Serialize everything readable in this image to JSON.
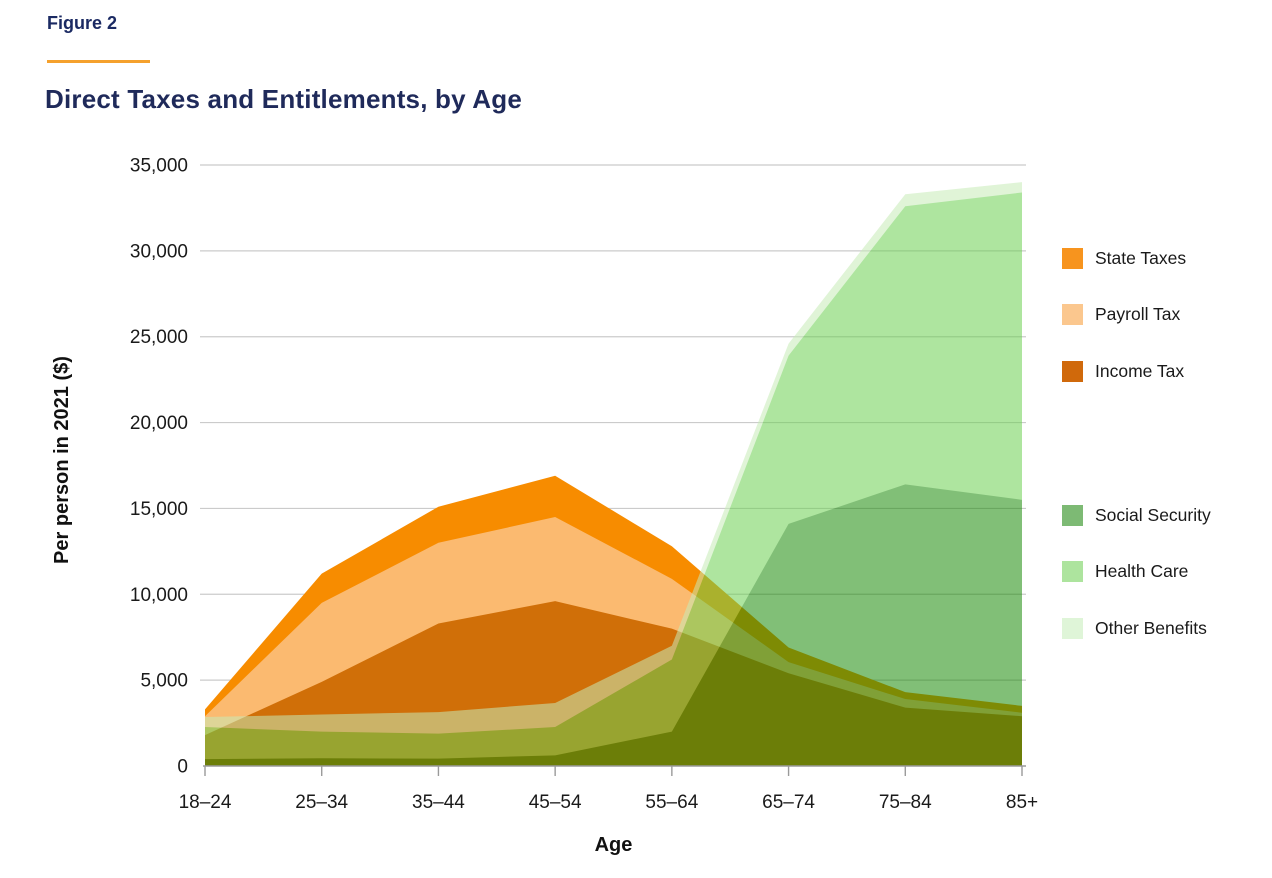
{
  "header": {
    "figure_label": "Figure 2",
    "title": "Direct Taxes and Entitlements, by Age",
    "accent_color": "#f5a12d",
    "title_color": "#1f2a5a"
  },
  "legend": {
    "items": [
      {
        "label": "State Taxes",
        "color": "#f7941e"
      },
      {
        "label": "Payroll Tax",
        "color": "#fbc78e"
      },
      {
        "label": "Income Tax",
        "color": "#d0690b"
      },
      {
        "label": "Social Security",
        "color": "#7dba74"
      },
      {
        "label": "Health Care",
        "color": "#ade49e"
      },
      {
        "label": "Other Benefits",
        "color": "#dff5d8"
      }
    ]
  },
  "chart_data": {
    "type": "area",
    "title": "Direct Taxes and Entitlements, by Age",
    "xlabel": "Age",
    "ylabel": "Per person in 2021 ($)",
    "categories": [
      "18–24",
      "25–34",
      "35–44",
      "45–54",
      "55–64",
      "65–74",
      "75–84",
      "85+"
    ],
    "ylim": [
      0,
      35000
    ],
    "y_tick_step": 5000,
    "y_tick_labels": [
      "0",
      "5,000",
      "10,000",
      "15,000",
      "20,000",
      "25,000",
      "30,000",
      "35,000"
    ],
    "grid": true,
    "legend_position": "right",
    "overlay_opacity": 0.55,
    "stacks": {
      "taxes_bottom_to_top": [
        "Income Tax",
        "Payroll Tax",
        "State Taxes"
      ],
      "benefits_bottom_to_top": [
        "Social Security",
        "Health Care",
        "Other Benefits"
      ],
      "note": "taxes stack drawn opaque; benefits stack drawn translucent on top, producing olive/tan overlap tones"
    },
    "series": [
      {
        "name": "Income Tax",
        "group": "taxes",
        "color": "#d06f08",
        "values": [
          1800,
          4900,
          8300,
          9600,
          8000,
          5400,
          3400,
          2900
        ]
      },
      {
        "name": "Payroll Tax",
        "group": "taxes",
        "color": "#fbba70",
        "values": [
          1100,
          4600,
          4700,
          4900,
          2900,
          650,
          500,
          200
        ]
      },
      {
        "name": "State Taxes",
        "group": "taxes",
        "color": "#f78c00",
        "values": [
          400,
          1700,
          2100,
          2400,
          1900,
          850,
          400,
          400
        ]
      },
      {
        "name": "Social Security",
        "group": "benefits",
        "color": "#7dba74",
        "fill": "#1c8b09",
        "values": [
          400,
          450,
          430,
          620,
          2000,
          14100,
          16400,
          15500
        ]
      },
      {
        "name": "Health Care",
        "group": "benefits",
        "color": "#ade49e",
        "fill": "#6cd052",
        "values": [
          1870,
          1550,
          1455,
          1650,
          4200,
          9800,
          16200,
          17900
        ]
      },
      {
        "name": "Other Benefits",
        "group": "benefits",
        "color": "#dff5d8",
        "fill": "#c7ecb8",
        "values": [
          580,
          1000,
          1255,
          1400,
          800,
          700,
          700,
          600
        ]
      }
    ],
    "cumulative_tops": {
      "taxes": [
        3300,
        11200,
        15100,
        16900,
        12800,
        6900,
        4300,
        3500
      ],
      "benefits": [
        2850,
        3000,
        3140,
        3670,
        7000,
        24600,
        33300,
        34000
      ]
    }
  },
  "axis_style": {
    "grid_color": "#cbcbcb",
    "axis_color": "#9a9a9a",
    "tick_label_color": "#1a1a1a"
  }
}
